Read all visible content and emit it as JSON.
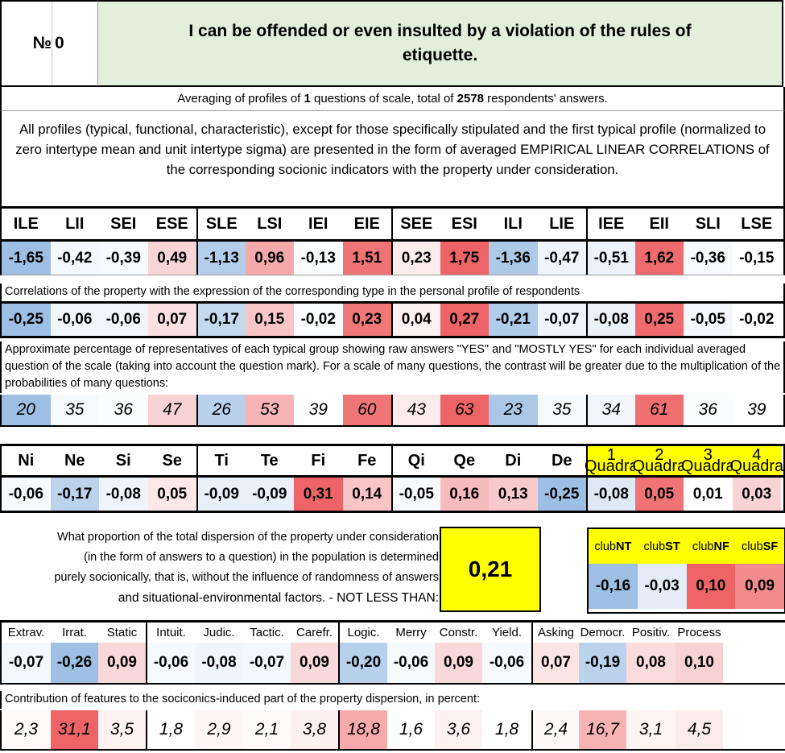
{
  "header": {
    "no_label": "№",
    "no_value": "0",
    "title": "I can be offended or even insulted by a violation of the rules of etiquette."
  },
  "averaging": {
    "prefix": "Averaging of profiles of ",
    "questions": "1",
    "middle": " questions of scale, total of ",
    "respondents": "2578",
    "suffix": " respondents' answers."
  },
  "note": "All profiles (typical, functional, characteristic), except for those specifically stipulated and the first typical profile (normalized to zero intertype mean and unit intertype sigma) are presented in the form of averaged EMPIRICAL LINEAR CORRELATIONS of the corresponding socionic indicators with the property under consideration.",
  "types": {
    "names": [
      "ILE",
      "LII",
      "SEI",
      "ESE",
      "SLE",
      "LSI",
      "IEI",
      "EIE",
      "SEE",
      "ESI",
      "ILI",
      "LIE",
      "IEE",
      "EII",
      "SLI",
      "LSE"
    ],
    "profile": [
      "-1,65",
      "-0,42",
      "-0,39",
      "0,49",
      "-1,13",
      "0,96",
      "-0,13",
      "1,51",
      "0,23",
      "1,75",
      "-1,36",
      "-0,47",
      "-0,51",
      "1,62",
      "-0,36",
      "-0,15"
    ],
    "profile_colors": [
      "#9dbfe3",
      "#f4f8fc",
      "#f6f9fd",
      "#f9d5d6",
      "#b3cdea",
      "#f5a9ab",
      "#fbfcfe",
      "#f07375",
      "#fcecec",
      "#ee6466",
      "#acc9e8",
      "#eff4fb",
      "#ecf2fa",
      "#ef6b6d",
      "#f7f9fd",
      "#ffffff"
    ],
    "corr_caption": "Correlations of the property with the expression of the corresponding type in the personal profile of respondents",
    "corr": [
      "-0,25",
      "-0,06",
      "-0,06",
      "0,07",
      "-0,17",
      "0,15",
      "-0,02",
      "0,23",
      "0,04",
      "0,27",
      "-0,21",
      "-0,07",
      "-0,08",
      "0,25",
      "-0,05",
      "-0,02"
    ],
    "corr_colors": [
      "#9dbfe3",
      "#f1f6fb",
      "#f1f6fb",
      "#fbe0e1",
      "#c4d8ee",
      "#f8c6c7",
      "#fafcfe",
      "#f17879",
      "#fdf0f0",
      "#ee6466",
      "#b1cbea",
      "#eff4fb",
      "#ebf1f9",
      "#ef6b6d",
      "#f4f8fc",
      "#ffffff"
    ],
    "pct_caption": "Approximate percentage of representatives of each typical group showing raw answers \"YES\" and \"MOSTLY YES\" for each individual averaged question of the scale (taking into account the question mark). For a scale of many questions, the contrast will be greater due to the multiplication of the probabilities of many questions:",
    "pct": [
      "20",
      "35",
      "36",
      "47",
      "26",
      "53",
      "39",
      "60",
      "43",
      "63",
      "23",
      "35",
      "34",
      "61",
      "36",
      "39"
    ],
    "pct_colors": [
      "#9dbfe3",
      "#f7fafd",
      "#fafcfe",
      "#f9d3d4",
      "#b9d1ec",
      "#f7b4b6",
      "#ffffff",
      "#f07577",
      "#fcebeb",
      "#ee6466",
      "#abc7e7",
      "#f7fafd",
      "#f2f6fb",
      "#ef6e70",
      "#fafcfe",
      "#ffffff"
    ]
  },
  "functions": {
    "names": [
      "Ni",
      "Ne",
      "Si",
      "Se",
      "Ti",
      "Te",
      "Fi",
      "Fe",
      "Qi",
      "Qe",
      "Di",
      "De"
    ],
    "quadra_labels": [
      {
        "num": "1",
        "label": "Quadra"
      },
      {
        "num": "2",
        "label": "Quadra"
      },
      {
        "num": "3",
        "label": "Quadra"
      },
      {
        "num": "4",
        "label": "Quadra"
      }
    ],
    "values": [
      "-0,06",
      "-0,17",
      "-0,08",
      "0,05",
      "-0,09",
      "-0,09",
      "0,31",
      "0,14",
      "-0,05",
      "0,16",
      "0,13",
      "-0,25",
      "-0,08",
      "0,05",
      "0,01",
      "0,03"
    ],
    "colors": [
      "#f7fafd",
      "#bcd3ec",
      "#eff4fb",
      "#fce8e8",
      "#e8eff9",
      "#e8eff9",
      "#ee6466",
      "#f8c4c5",
      "#f7fafd",
      "#f8bbbd",
      "#f9cacb",
      "#9dbfe3",
      "#dfe9f6",
      "#f07375",
      "#ffffff",
      "#f9d2d3"
    ]
  },
  "dispersion": {
    "lines": [
      "What proportion of the total dispersion of the property under consideration",
      "(in the form of answers to a question) in the population is determined",
      "purely socionically, that is, without the influence of randomness of answers",
      "and situational-environmental factors. - NOT LESS THAN:"
    ],
    "value": "0,21"
  },
  "clubs": {
    "labels": [
      {
        "pre": "club",
        "bold": "NT"
      },
      {
        "pre": "club",
        "bold": "ST"
      },
      {
        "pre": "club",
        "bold": "NF"
      },
      {
        "pre": "club",
        "bold": "SF"
      }
    ],
    "values": [
      "-0,16",
      "-0,03",
      "0,10",
      "0,09"
    ],
    "colors": [
      "#9dbfe3",
      "#e3ecf7",
      "#ee6466",
      "#f38a8c"
    ]
  },
  "features": {
    "names": [
      "Extrav.",
      "Irrat.",
      "Static",
      "Intuit.",
      "Judic.",
      "Tactic.",
      "Carefr.",
      "Logic.",
      "Merry",
      "Constr.",
      "Yield.",
      "Asking",
      "Democr.",
      "Positiv.",
      "Process"
    ],
    "values": [
      "-0,07",
      "-0,26",
      "0,09",
      "-0,06",
      "-0,08",
      "-0,07",
      "0,09",
      "-0,20",
      "-0,06",
      "0,09",
      "-0,06",
      "0,07",
      "-0,19",
      "0,08",
      "0,10"
    ],
    "value_colors": [
      "#f3f7fc",
      "#9dbfe3",
      "#f9d8d9",
      "#f6f9fd",
      "#f0f5fb",
      "#f3f7fc",
      "#f9d8d9",
      "#b7d0eb",
      "#f6f9fd",
      "#f9d8d9",
      "#f6f9fd",
      "#fbe4e4",
      "#bbd2ec",
      "#fadcdd",
      "#f8d1d2"
    ],
    "contrib_caption": "Contribution of features to the sociconics-induced part of the property dispersion, in percent:",
    "contrib": [
      "2,3",
      "31,1",
      "3,5",
      "1,8",
      "2,9",
      "2,1",
      "3,8",
      "18,8",
      "1,6",
      "3,6",
      "1,8",
      "2,4",
      "16,7",
      "3,1",
      "4,5"
    ],
    "contrib_colors": [
      "#fefafa",
      "#ee6466",
      "#fdf1f1",
      "#ffffff",
      "#fef6f6",
      "#fefafa",
      "#fdf0f0",
      "#f6aaac",
      "#ffffff",
      "#fdf1f1",
      "#ffffff",
      "#fef9f9",
      "#f7b3b4",
      "#fef4f4",
      "#fcebeb"
    ]
  }
}
